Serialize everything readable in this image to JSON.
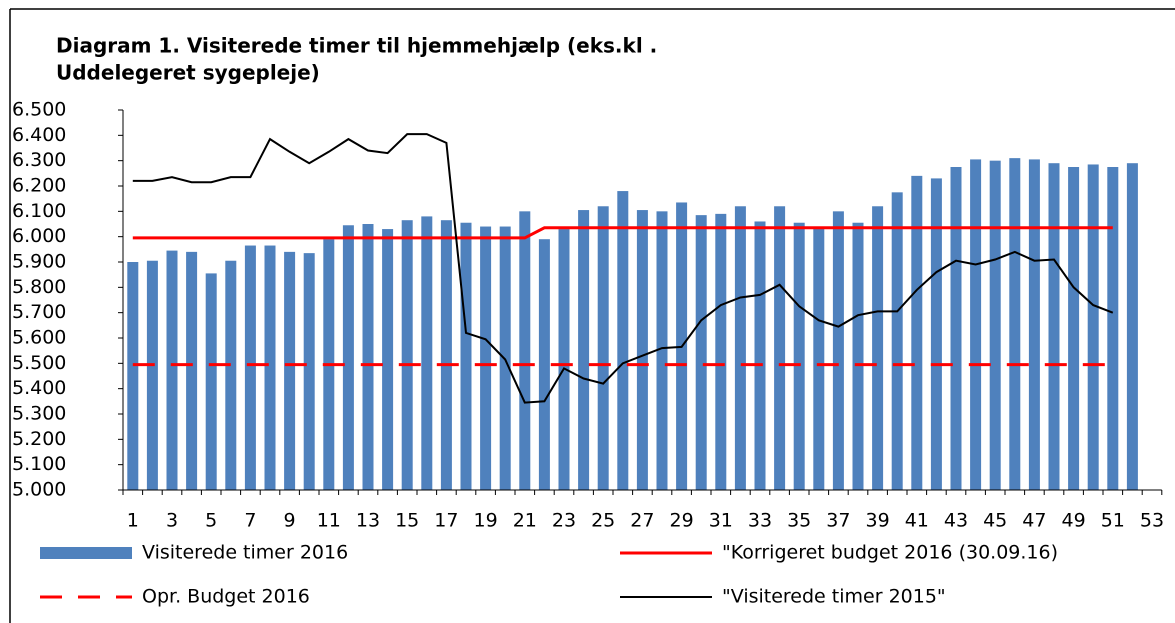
{
  "chart_data": {
    "type": "bar",
    "title": [
      "Diagram 1. Visiterede timer til hjemmehjælp (eks.kl .",
      "Uddelegeret sygepleje)"
    ],
    "categories": [
      "1",
      null,
      "3",
      null,
      "5",
      null,
      "7",
      null,
      "9",
      null,
      "11",
      null,
      "13",
      null,
      "15",
      null,
      "17",
      null,
      "19",
      null,
      "21",
      null,
      "23",
      null,
      "25",
      null,
      "27",
      null,
      "29",
      null,
      "31",
      null,
      "33",
      null,
      "35",
      null,
      "37",
      null,
      "39",
      null,
      "41",
      null,
      "43",
      null,
      "45",
      null,
      "47",
      null,
      "49",
      null,
      "51",
      null,
      "53"
    ],
    "ylim": [
      5000,
      6500
    ],
    "yticks": [
      {
        "value": 5000,
        "label": "5.000"
      },
      {
        "value": 5100,
        "label": "5.100"
      },
      {
        "value": 5200,
        "label": "5.200"
      },
      {
        "value": 5300,
        "label": "5.300"
      },
      {
        "value": 5400,
        "label": "5.400"
      },
      {
        "value": 5500,
        "label": "5.500"
      },
      {
        "value": 5600,
        "label": "5.600"
      },
      {
        "value": 5700,
        "label": "5.700"
      },
      {
        "value": 5800,
        "label": "5.800"
      },
      {
        "value": 5900,
        "label": "5.900"
      },
      {
        "value": 6000,
        "label": "6.000"
      },
      {
        "value": 6100,
        "label": "6.100"
      },
      {
        "value": 6200,
        "label": "6.200"
      },
      {
        "value": 6300,
        "label": "6.300"
      },
      {
        "value": 6400,
        "label": "6.400"
      },
      {
        "value": 6500,
        "label": "6.500"
      }
    ],
    "grid": false,
    "series": [
      {
        "name": "Visiterede timer 2016",
        "type": "bar",
        "color": "#4f81bd",
        "values": [
          5900,
          5905,
          5945,
          5940,
          5855,
          5905,
          5965,
          5965,
          5940,
          5935,
          5990,
          6045,
          6050,
          6030,
          6065,
          6080,
          6065,
          6055,
          6040,
          6040,
          6100,
          5990,
          6030,
          6105,
          6120,
          6180,
          6105,
          6100,
          6135,
          6085,
          6090,
          6120,
          6060,
          6120,
          6055,
          6035,
          6100,
          6055,
          6120,
          6175,
          6240,
          6230,
          6275,
          6305,
          6300,
          6310,
          6305,
          6290,
          6275,
          6285,
          6275,
          6290,
          null
        ]
      },
      {
        "name": "\"Korrigeret budget 2016 (30.09.16)",
        "type": "line",
        "line_style": "solid",
        "color": "#ff0000",
        "values": [
          5995,
          5995,
          5995,
          5995,
          5995,
          5995,
          5995,
          5995,
          5995,
          5995,
          5995,
          5995,
          5995,
          5995,
          5995,
          5995,
          5995,
          5995,
          5995,
          5995,
          5995,
          6035,
          6035,
          6035,
          6035,
          6035,
          6035,
          6035,
          6035,
          6035,
          6035,
          6035,
          6035,
          6035,
          6035,
          6035,
          6035,
          6035,
          6035,
          6035,
          6035,
          6035,
          6035,
          6035,
          6035,
          6035,
          6035,
          6035,
          6035,
          6035,
          6035,
          null,
          null
        ]
      },
      {
        "name": "Opr. Budget 2016",
        "type": "line",
        "line_style": "dashed",
        "color": "#ff0000",
        "values": [
          5495,
          5495,
          5495,
          5495,
          5495,
          5495,
          5495,
          5495,
          5495,
          5495,
          5495,
          5495,
          5495,
          5495,
          5495,
          5495,
          5495,
          5495,
          5495,
          5495,
          5495,
          5495,
          5495,
          5495,
          5495,
          5495,
          5495,
          5495,
          5495,
          5495,
          5495,
          5495,
          5495,
          5495,
          5495,
          5495,
          5495,
          5495,
          5495,
          5495,
          5495,
          5495,
          5495,
          5495,
          5495,
          5495,
          5495,
          5495,
          5495,
          5495,
          5495,
          null,
          null
        ]
      },
      {
        "name": "\"Visiterede timer 2015\"",
        "type": "line",
        "line_style": "solid",
        "color": "#000000",
        "values": [
          6220,
          6220,
          6235,
          6215,
          6215,
          6235,
          6235,
          6385,
          6335,
          6290,
          6335,
          6385,
          6340,
          6330,
          6405,
          6405,
          6370,
          5620,
          5595,
          5515,
          5345,
          5350,
          5480,
          5440,
          5420,
          5500,
          5530,
          5560,
          5565,
          5670,
          5730,
          5760,
          5770,
          5810,
          5725,
          5670,
          5645,
          5690,
          5705,
          5705,
          5790,
          5860,
          5905,
          5890,
          5910,
          5940,
          5905,
          5910,
          5800,
          5730,
          5700,
          null,
          null
        ]
      }
    ]
  }
}
